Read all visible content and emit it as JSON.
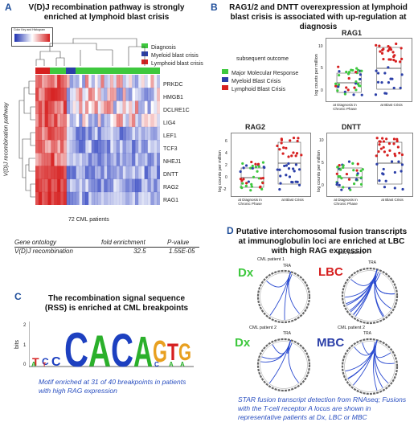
{
  "panelA": {
    "label": "A",
    "title": "V(D)J recombination  pathway is strongly enriched at lymphoid blast crisis",
    "colorkey_label": "Color Key and Histogram",
    "legend": [
      {
        "label": "Diagnosis",
        "color": "#3ec83e"
      },
      {
        "label": "Myeloid blast crisis",
        "color": "#2b3fa8"
      },
      {
        "label": "Lymphoid blast crisis",
        "color": "#d62020"
      }
    ],
    "genes": [
      "PRKDC",
      "HMGB1",
      "DCLRE1C",
      "LIG4",
      "LEF1",
      "TCF3",
      "NHEJ1",
      "DNTT",
      "RAG2",
      "RAG1"
    ],
    "y_axis_label": "V(D)J  recombination pathway",
    "x_caption": "72 CML patients",
    "table": {
      "headers": [
        "Gene ontology",
        "fold enrichment",
        "P-value"
      ],
      "row": [
        "V(D)J recombination",
        "32.5",
        "1.55E-05"
      ]
    }
  },
  "panelB": {
    "label": "B",
    "title": "RAG1/2 and DNTT overexpression at lymphoid blast crisis is associated with up-regulation at diagnosis",
    "legend_title": "subsequent outcome",
    "legend": [
      {
        "label": "Major Molecular Response",
        "color": "#3ec83e"
      },
      {
        "label": "Myeloid Blast Crisis",
        "color": "#2b3fa8"
      },
      {
        "label": "Lymphoid Blast Crisis",
        "color": "#d62020"
      }
    ],
    "ylabel": "log counts per million",
    "plots": [
      {
        "name": "RAG1",
        "yticks": [
          "10",
          "5",
          "0"
        ],
        "cat1": "at Diagnosis in Chronic Phase",
        "cat2": "at Blast Crisis"
      },
      {
        "name": "RAG2",
        "yticks": [
          "6",
          "4",
          "2",
          "0",
          "-2"
        ],
        "cat1": "at Diagnosis in Chronic Phase",
        "cat2": "at Blast Crisis"
      },
      {
        "name": "DNTT",
        "yticks": [
          "10",
          "5",
          "0"
        ],
        "cat1": "at Diagnosis in Chronic Phase",
        "cat2": "at Blast Crisis"
      }
    ]
  },
  "panelC": {
    "label": "C",
    "title": "The recombination signal sequence (RSS) is enriched at CML breakpoints",
    "ylabel": "bits",
    "yticks": [
      "2",
      "1",
      "0"
    ],
    "motif_letters": [
      "A",
      "C",
      "C",
      "A",
      "C",
      "A",
      "G",
      "T",
      "G"
    ],
    "caption": "Motif enriched at 31 of 40  breakpoints in patients with high RAG expression"
  },
  "panelD": {
    "label": "D",
    "title": "Putative interchomosomal fusion transcripts at immunoglobulin loci are enriched at LBC with high RAG expression",
    "circos": [
      {
        "patient": "CML patient 1",
        "tag": "Dx",
        "tag_color": "#3ec83e",
        "tra": "TRA"
      },
      {
        "patient": "CML patient 1",
        "tag": "LBC",
        "tag_color": "#d62020",
        "tra": "TRA"
      },
      {
        "patient": "CML patient 2",
        "tag": "Dx",
        "tag_color": "#3ec83e",
        "tra": "TRA"
      },
      {
        "patient": "CML patient 2",
        "tag": "MBC",
        "tag_color": "#2b3fa8",
        "tra": "TRA"
      }
    ],
    "caption": "STAR fusion transcript detection from RNAseq; Fusions with the T-cell receptor A locus are shown in representative patients at Dx, LBC or MBC"
  }
}
